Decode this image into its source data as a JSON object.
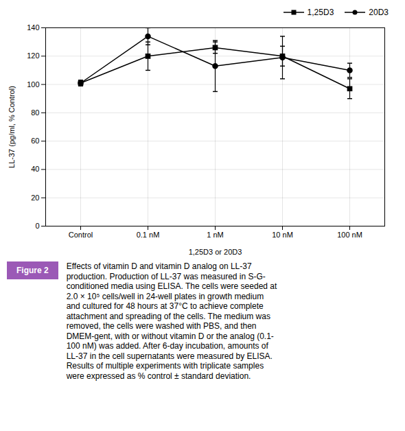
{
  "chart_data": {
    "type": "line",
    "categories": [
      "Control",
      "0.1 nM",
      "1 nM",
      "10 nM",
      "100 nM"
    ],
    "series": [
      {
        "name": "1,25D3",
        "color": "#000000",
        "marker": "square",
        "values": [
          101,
          120,
          126,
          120,
          97
        ],
        "errors": [
          2,
          10,
          4,
          7,
          7
        ]
      },
      {
        "name": "20D3",
        "color": "#000000",
        "marker": "circle",
        "values": [
          101,
          134,
          113,
          119,
          110
        ],
        "errors": [
          2,
          6,
          18,
          15,
          5
        ]
      }
    ],
    "xlabel": "1,25D3 or 20D3",
    "ylabel": "LL-37 (pg/ml, % Control)",
    "ylim": [
      0,
      140
    ],
    "yticks": [
      0,
      20,
      40,
      60,
      80,
      100,
      120,
      140
    ],
    "grid": true,
    "legend": "upper right",
    "annotations": [
      "Figure 2"
    ],
    "caption": [
      "Effects of vitamin D and vitamin D analog on LL-37",
      "production. Production of LL-37 was measured in S-G-",
      "conditioned media using ELISA. The cells were seeded at",
      "2.0 × 10⁵ cells/well in 24-well plates in growth medium",
      "and cultured for 48 hours at 37°C to achieve complete",
      "attachment and spreading of the cells. The medium was",
      "removed, the cells were washed with PBS, and then",
      "DMEM-gent, with or without vitamin D or the analog (0.1-",
      "100 nM) was added. After 6-day incubation, amounts of",
      "LL-37 in the cell supernatants were measured by ELISA.",
      "Results of multiple experiments with triplicate samples",
      "were expressed as % control ± standard deviation."
    ]
  }
}
